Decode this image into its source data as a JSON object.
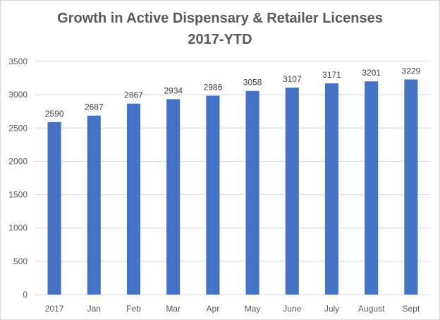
{
  "chart_data": {
    "type": "bar",
    "title_lines": [
      "Growth in Active Dispensary & Retailer Licenses",
      "2017-YTD"
    ],
    "categories": [
      "2017",
      "Jan",
      "Feb",
      "Mar",
      "Apr",
      "May",
      "June",
      "July",
      "August",
      "Sept"
    ],
    "values": [
      2590,
      2687,
      2867,
      2934,
      2986,
      3058,
      3107,
      3171,
      3201,
      3229
    ],
    "data_labels": [
      "2590",
      "2687",
      "2867",
      "2934",
      "2986",
      "3058",
      "3107",
      "3171",
      "3201",
      "3229"
    ],
    "ylim": [
      0,
      3500
    ],
    "yticks": [
      "0",
      "500",
      "1000",
      "1500",
      "2000",
      "2500",
      "3000",
      "3500"
    ],
    "xlabel": "",
    "ylabel": "",
    "grid": true,
    "legend": false,
    "bar_color": "#4472c4",
    "grid_color": "#d9d9d9"
  }
}
